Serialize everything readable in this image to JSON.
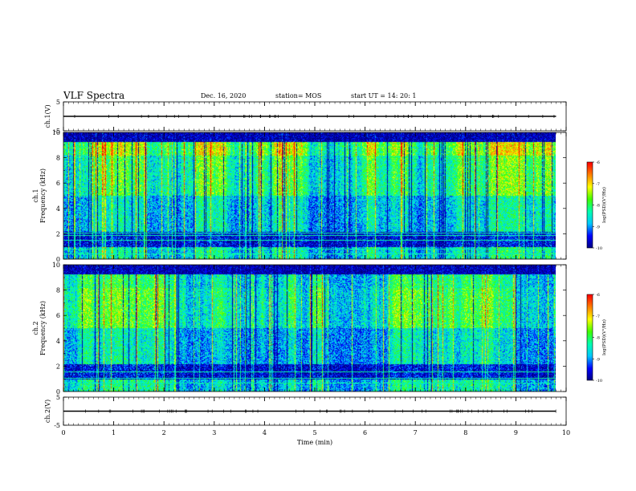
{
  "header": {
    "title": "VLF Spectra",
    "date": "Dec. 16, 2020",
    "station": "station= MOS",
    "start": "start UT =   14: 20: 1"
  },
  "chart_data": [
    {
      "type": "line",
      "panel": "ch1-waveform",
      "ylabel": "ch.1(V)",
      "ylim": [
        -5,
        5
      ],
      "yticks": [
        "5",
        "-5"
      ],
      "series": [
        {
          "x": [
            0,
            9.8
          ],
          "values": [
            0,
            0
          ]
        }
      ]
    },
    {
      "type": "heatmap",
      "panel": "ch1-spectrogram",
      "ylabel": "ch.1\nFrequency (kHz)",
      "ylim": [
        0,
        10
      ],
      "yticks": [
        "0",
        "2",
        "4",
        "6",
        "8",
        "10"
      ],
      "colorbar": {
        "label": "log(PSD)(V²/Hz)",
        "range": [
          -10,
          -6
        ],
        "ticks": [
          "-6",
          "-7",
          "-8",
          "-9",
          "-10"
        ]
      }
    },
    {
      "type": "heatmap",
      "panel": "ch2-spectrogram",
      "ylabel": "ch.2\nFrequency (kHz)",
      "ylim": [
        0,
        10
      ],
      "yticks": [
        "0",
        "2",
        "4",
        "6",
        "8",
        "10"
      ],
      "colorbar": {
        "label": "log(PSD)(V²/Hz)",
        "range": [
          -10,
          -6
        ],
        "ticks": [
          "-6",
          "-7",
          "-8",
          "-9",
          "-10"
        ]
      }
    },
    {
      "type": "line",
      "panel": "ch2-waveform",
      "ylabel": "ch.2(V)",
      "ylim": [
        -5,
        5
      ],
      "yticks": [
        "5",
        "-5"
      ],
      "series": [
        {
          "x": [
            0,
            9.8
          ],
          "values": [
            0,
            0
          ]
        }
      ]
    }
  ],
  "xaxis": {
    "label": "Time  (min)",
    "xlim": [
      0,
      10
    ],
    "ticks": [
      "0",
      "1",
      "2",
      "3",
      "4",
      "5",
      "6",
      "7",
      "8",
      "9",
      "10"
    ]
  },
  "colors": {
    "colormap": [
      "#000080",
      "#0000ff",
      "#00c8ff",
      "#00ffb0",
      "#40ff00",
      "#ffff00",
      "#ff8000",
      "#ff0000",
      "#ffffff"
    ]
  }
}
